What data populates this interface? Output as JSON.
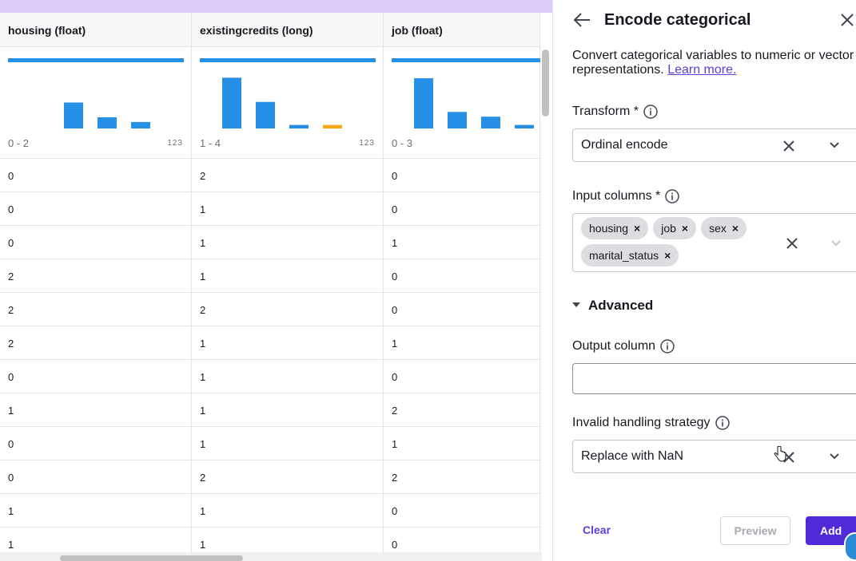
{
  "columns": [
    {
      "header": "housing (float)",
      "range": "0 - 2",
      "type_indicator": "123"
    },
    {
      "header": "existingcredits (long)",
      "range": "1 - 4",
      "type_indicator": "123"
    },
    {
      "header": "job (float)",
      "range": "0 - 3"
    }
  ],
  "colors": {
    "bar": "#2590e6",
    "highlight_bar": "#f4a915",
    "accent": "#5029d8",
    "top_strip": "#dccbf7"
  },
  "histograms": [
    {
      "values": [
        0,
        0.44,
        0.19,
        0.11
      ]
    },
    {
      "values": [
        0.86,
        0.45,
        0.06,
        0.06
      ],
      "highlight_index": 3
    },
    {
      "values": [
        0.85,
        0.28,
        0.2,
        0.06
      ]
    }
  ],
  "rows": [
    [
      "0",
      "2",
      "0"
    ],
    [
      "0",
      "1",
      "0"
    ],
    [
      "0",
      "1",
      "1"
    ],
    [
      "2",
      "1",
      "0"
    ],
    [
      "2",
      "2",
      "0"
    ],
    [
      "2",
      "1",
      "1"
    ],
    [
      "0",
      "1",
      "0"
    ],
    [
      "1",
      "1",
      "2"
    ],
    [
      "0",
      "1",
      "1"
    ],
    [
      "0",
      "2",
      "2"
    ],
    [
      "1",
      "1",
      "0"
    ],
    [
      "1",
      "1",
      "0"
    ]
  ],
  "panel": {
    "title": "Encode categorical",
    "description": "Convert categorical variables to numeric or vector representations.",
    "learn_more": "Learn more.",
    "transform": {
      "label": "Transform *",
      "value": "Ordinal encode"
    },
    "input_columns": {
      "label": "Input columns *",
      "tokens": [
        "housing",
        "job",
        "sex",
        "marital_status"
      ]
    },
    "advanced": {
      "label": "Advanced"
    },
    "output_column": {
      "label": "Output column",
      "value": ""
    },
    "invalid_handling": {
      "label": "Invalid handling strategy",
      "value": "Replace with NaN"
    },
    "buttons": {
      "clear": "Clear",
      "preview": "Preview",
      "add": "Add"
    }
  }
}
